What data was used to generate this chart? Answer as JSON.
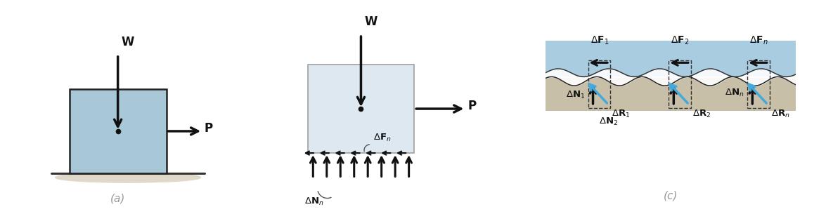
{
  "bg_color": "#ffffff",
  "box_color_a": "#a8c8d8",
  "box_color_b": "#dde8f0",
  "box_edge_a": "#222222",
  "box_edge_b": "#999999",
  "arrow_color": "#111111",
  "blue_arrow_color": "#44aadd",
  "ground_color": "#c8bfa8",
  "sky_color": "#aacce0",
  "label_color": "#111111",
  "panel_a_label": "(a)",
  "panel_c_label": "(c)"
}
